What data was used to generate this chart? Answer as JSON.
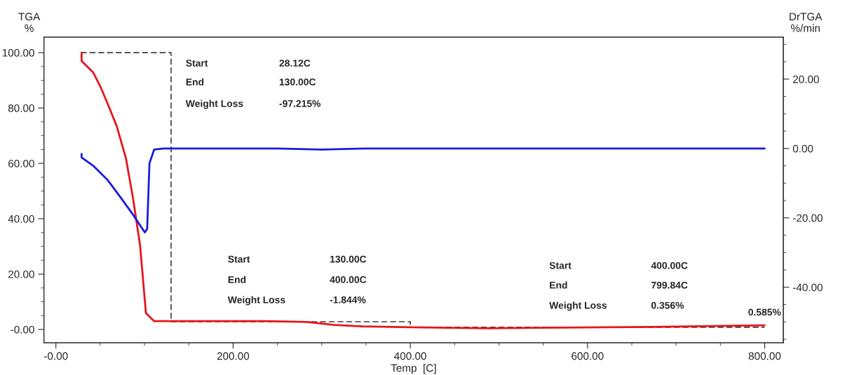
{
  "chart_data": {
    "type": "line",
    "xlabel": "Temp  [C]",
    "ylabel": "TGA\n%",
    "y2label": "DrTGA\n%/min",
    "xlim": [
      -13.5,
      821
    ],
    "ylim": [
      -4.8,
      105.6
    ],
    "y2lim": [
      -56.0,
      32.1
    ],
    "xticks": [
      {
        "value": 0,
        "label": "-0.00"
      },
      {
        "value": 50,
        "label": null
      },
      {
        "value": 100,
        "label": null
      },
      {
        "value": 150,
        "label": null
      },
      {
        "value": 200,
        "label": "200.00"
      },
      {
        "value": 250,
        "label": null
      },
      {
        "value": 300,
        "label": null
      },
      {
        "value": 350,
        "label": null
      },
      {
        "value": 400,
        "label": "400.00"
      },
      {
        "value": 450,
        "label": null
      },
      {
        "value": 500,
        "label": null
      },
      {
        "value": 550,
        "label": null
      },
      {
        "value": 600,
        "label": "600.00"
      },
      {
        "value": 650,
        "label": null
      },
      {
        "value": 700,
        "label": null
      },
      {
        "value": 750,
        "label": null
      },
      {
        "value": 800,
        "label": "800.00"
      }
    ],
    "yticks": [
      {
        "value": 0,
        "label": "-0.00"
      },
      {
        "value": 5,
        "label": null
      },
      {
        "value": 10,
        "label": null
      },
      {
        "value": 15,
        "label": null
      },
      {
        "value": 20,
        "label": "20.00"
      },
      {
        "value": 25,
        "label": null
      },
      {
        "value": 30,
        "label": null
      },
      {
        "value": 35,
        "label": null
      },
      {
        "value": 40,
        "label": "40.00"
      },
      {
        "value": 45,
        "label": null
      },
      {
        "value": 50,
        "label": null
      },
      {
        "value": 55,
        "label": null
      },
      {
        "value": 60,
        "label": "60.00"
      },
      {
        "value": 65,
        "label": null
      },
      {
        "value": 70,
        "label": null
      },
      {
        "value": 75,
        "label": null
      },
      {
        "value": 80,
        "label": "80.00"
      },
      {
        "value": 85,
        "label": null
      },
      {
        "value": 90,
        "label": null
      },
      {
        "value": 95,
        "label": null
      },
      {
        "value": 100,
        "label": "100.00"
      }
    ],
    "y2ticks": [
      {
        "value": -55,
        "label": null
      },
      {
        "value": -50,
        "label": null
      },
      {
        "value": -45,
        "label": null
      },
      {
        "value": -40,
        "label": "-40.00"
      },
      {
        "value": -35,
        "label": null
      },
      {
        "value": -30,
        "label": null
      },
      {
        "value": -25,
        "label": null
      },
      {
        "value": -20,
        "label": "-20.00"
      },
      {
        "value": -15,
        "label": null
      },
      {
        "value": -10,
        "label": null
      },
      {
        "value": -5,
        "label": null
      },
      {
        "value": 0,
        "label": "0.00"
      },
      {
        "value": 5,
        "label": null
      },
      {
        "value": 10,
        "label": null
      },
      {
        "value": 15,
        "label": null
      },
      {
        "value": 20,
        "label": "20.00"
      },
      {
        "value": 25,
        "label": null
      },
      {
        "value": 30,
        "label": null
      }
    ],
    "grid": false,
    "legend": false,
    "series": [
      {
        "color": "#404040",
        "line_style": "dashed",
        "x": [
          28.12,
          130,
          130,
          400,
          400,
          799.84
        ],
        "values": [
          100,
          100,
          2.8,
          2.8,
          0.8,
          0.8
        ]
      },
      {
        "color": "#e8141b",
        "line_style": "solid",
        "x": [
          29,
          29,
          42.2,
          50.1,
          58.1,
          68.7,
          79.2,
          87.1,
          95.0,
          101.6,
          110.9,
          237.6,
          283.5,
          312.6,
          346,
          400,
          487.8,
          571,
          675,
          799.84
        ],
        "values": [
          100,
          97.0,
          92.8,
          87.8,
          81.8,
          73.4,
          61.6,
          47.3,
          30.4,
          5.9,
          3.0,
          3.0,
          2.7,
          1.7,
          1.1,
          0.8,
          0.4,
          0.7,
          0.9,
          1.5
        ]
      },
      {
        "color": "#1a1adc",
        "line_style": "solid",
        "axis": "y2",
        "x": [
          29,
          29,
          42.2,
          58.1,
          73.9,
          87.1,
          100.3,
          103,
          105.6,
          110.9,
          121.4,
          250,
          300,
          350,
          400,
          600,
          800
        ],
        "values": [
          -1.6,
          -2.6,
          -5.0,
          -9.0,
          -14.4,
          -19.1,
          -24.2,
          -23.2,
          -4.3,
          -0.3,
          0,
          0,
          -0.3,
          0,
          0,
          0,
          0
        ]
      }
    ],
    "annotations": [
      "Start",
      "28.12C",
      "End",
      "130.00C",
      "Weight Loss",
      "-97.215%",
      "Start",
      "130.00C",
      "End",
      "400.00C",
      "Weight Loss",
      "-1.844%",
      "Start",
      "400.00C",
      "End",
      "799.84C",
      "Weight Loss",
      "0.356%",
      {
        "text": "0.585%",
        "x": 799.84,
        "y": 1.5
      }
    ]
  }
}
